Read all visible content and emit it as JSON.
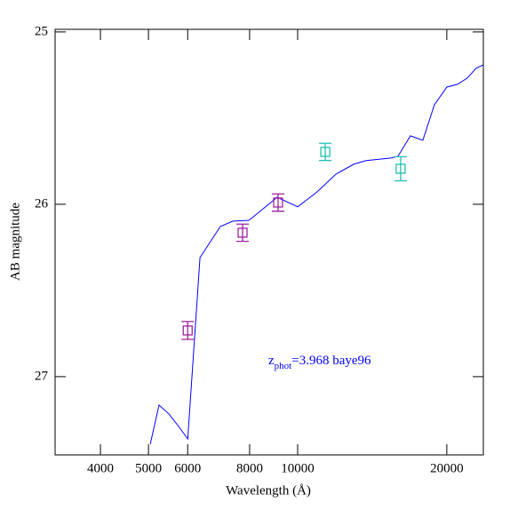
{
  "chart_data": {
    "type": "line",
    "xlabel": "Wavelength (Å)",
    "ylabel": "AB magnitude",
    "annotation": {
      "main": "z",
      "sub": "phot",
      "rest": "=3.968 baye96",
      "color": "#0000ff"
    },
    "xscale": "log",
    "xlim": [
      3240,
      23700
    ],
    "ylim": [
      24.985,
      27.454
    ],
    "yinverted": true,
    "xticks": [
      4000,
      5000,
      6000,
      8000,
      10000,
      20000
    ],
    "yticks": [
      25,
      26,
      27
    ],
    "series": [
      {
        "color": "#0000ff",
        "kind": "line",
        "x": [
          5041,
          5253,
          5495,
          5754,
          6000,
          6353,
          6983,
          7400,
          7969,
          8307,
          9096,
          10000,
          10950,
          11946,
          12970,
          13740,
          15430,
          15940,
          16890,
          17890,
          18880,
          20000,
          21020,
          21990,
          22920,
          23700
        ],
        "values": [
          27.392,
          27.165,
          27.216,
          27.289,
          27.361,
          26.309,
          26.129,
          26.098,
          26.093,
          26.052,
          25.959,
          26.015,
          25.928,
          25.825,
          25.768,
          25.747,
          25.732,
          25.722,
          25.603,
          25.629,
          25.423,
          25.32,
          25.304,
          25.268,
          25.211,
          25.191
        ]
      },
      {
        "color": "#a020a0",
        "kind": "points",
        "x": [
          6000,
          7743,
          9132
        ],
        "values": [
          26.732,
          26.165,
          25.99
        ],
        "errors": [
          0.052,
          0.05,
          0.05
        ]
      },
      {
        "color": "#20c0b0",
        "kind": "points",
        "x": [
          11370,
          16140
        ],
        "values": [
          25.696,
          25.794
        ],
        "errors": [
          0.05,
          0.07
        ]
      }
    ]
  }
}
